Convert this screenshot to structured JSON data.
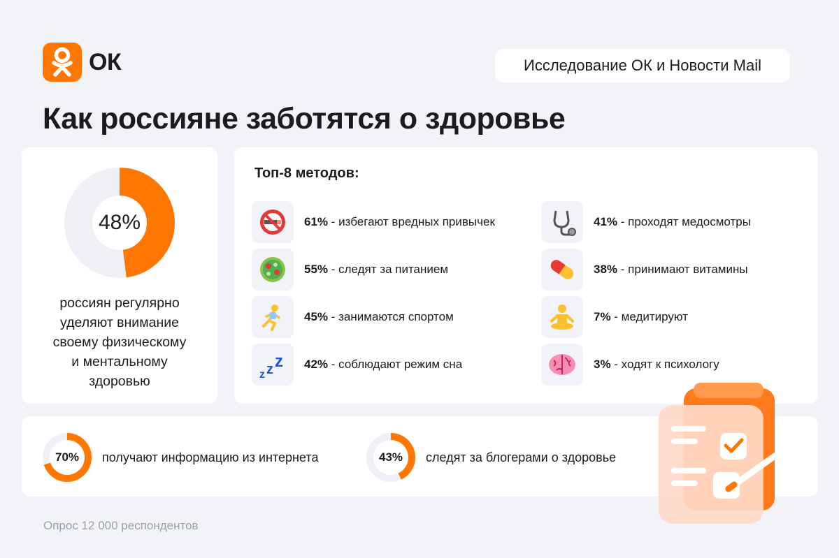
{
  "brand": {
    "logo_text": "ОК",
    "logo_color": "#ff7700"
  },
  "header": {
    "source_badge": "Исследование ОК и Новости Mail",
    "title": "Как россияне заботятся о здоровье"
  },
  "main_stat": {
    "percent_label": "48%",
    "value": 48,
    "caption_lines": [
      "россиян регулярно",
      "уделяют внимание",
      "своему физическому",
      "и ментальному",
      "здоровью"
    ]
  },
  "methods": {
    "title": "Топ-8 методов:",
    "items": [
      {
        "pct": "61%",
        "text": " - избегают вредных привычек",
        "icon": "no-smoking-icon"
      },
      {
        "pct": "55%",
        "text": " - следят за питанием",
        "icon": "salad-icon"
      },
      {
        "pct": "45%",
        "text": " - занимаются спортом",
        "icon": "runner-icon"
      },
      {
        "pct": "42%",
        "text": " - соблюдают режим сна",
        "icon": "sleep-zzz-icon"
      },
      {
        "pct": "41%",
        "text": " - проходят медосмотры",
        "icon": "stethoscope-icon"
      },
      {
        "pct": "38%",
        "text": " - принимают витамины",
        "icon": "pill-icon"
      },
      {
        "pct": "7%",
        "text": " - медитируют",
        "icon": "meditation-icon"
      },
      {
        "pct": "3%",
        "text": " - ходят к психологу",
        "icon": "brain-icon"
      }
    ]
  },
  "bottom_stats": [
    {
      "label": "70%",
      "value": 70,
      "text": "получают информацию из интернета"
    },
    {
      "label": "43%",
      "value": 43,
      "text": "следят за блогерами о здоровье"
    }
  ],
  "footer": {
    "note": "Опрос 12 000 респондентов"
  },
  "colors": {
    "accent": "#ff7700",
    "track": "#eef0f6",
    "background": "#f1f3f9"
  },
  "chart_data": [
    {
      "type": "pie",
      "categories": [
        "россиян регулярно уделяют внимание своему физическому и ментальному здоровью"
      ],
      "values": [
        48
      ]
    },
    {
      "type": "bar",
      "title": "Топ-8 методов:",
      "categories": [
        "избегают вредных привычек",
        "следят за питанием",
        "занимаются спортом",
        "соблюдают режим сна",
        "проходят медосмотры",
        "принимают витамины",
        "медитируют",
        "ходят к психологу"
      ],
      "values": [
        61,
        55,
        45,
        42,
        41,
        38,
        7,
        3
      ]
    },
    {
      "type": "pie",
      "categories": [
        "получают информацию из интернета",
        "следят за блогерами о здоровье"
      ],
      "values": [
        70,
        43
      ]
    }
  ]
}
